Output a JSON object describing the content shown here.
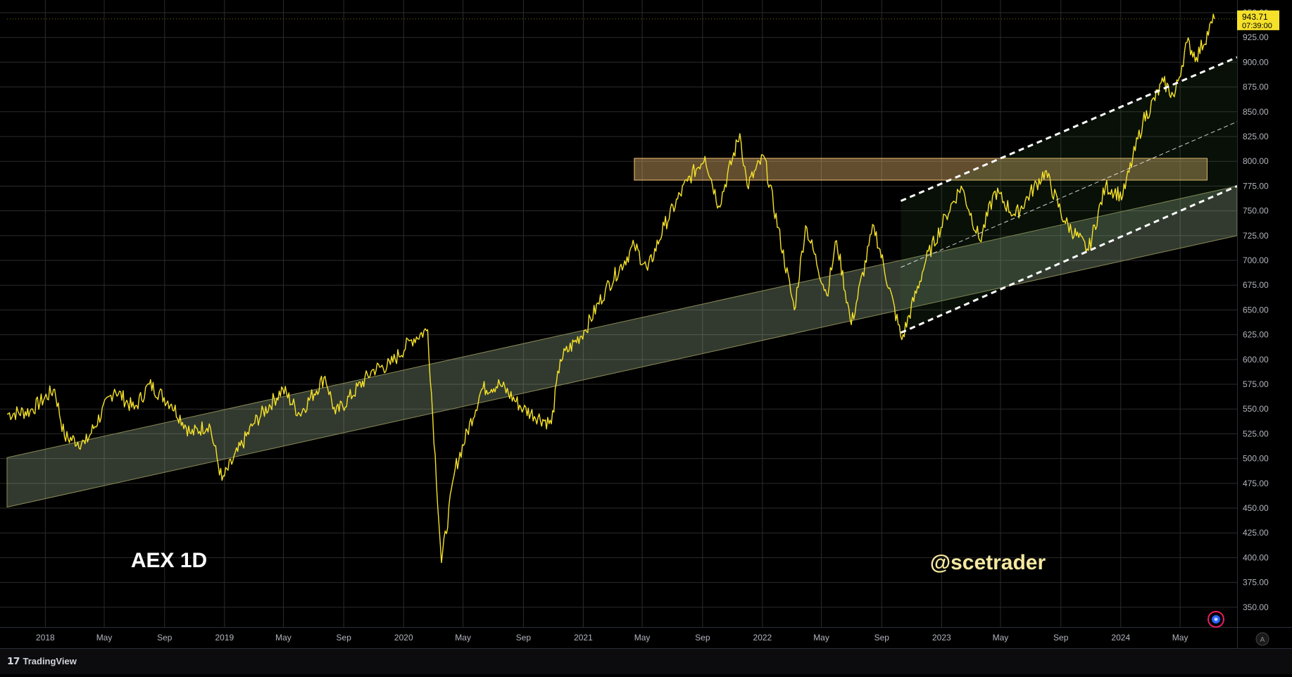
{
  "chart_data": {
    "type": "line",
    "title": "AEX 1D",
    "watermark": "@scetrader",
    "y_axis": {
      "min": 330,
      "max": 950,
      "ticks": [
        "350.00",
        "375.00",
        "400.00",
        "425.00",
        "450.00",
        "475.00",
        "500.00",
        "525.00",
        "550.00",
        "575.00",
        "600.00",
        "625.00",
        "650.00",
        "675.00",
        "700.00",
        "725.00",
        "750.00",
        "775.00",
        "800.00",
        "825.00",
        "850.00",
        "875.00",
        "900.00",
        "925.00",
        "950.00"
      ]
    },
    "x_axis": {
      "range": [
        "2017-10-15",
        "2024-08-25"
      ],
      "ticks": [
        {
          "label": "2018",
          "date": "2018-01-01"
        },
        {
          "label": "May",
          "date": "2018-05-01"
        },
        {
          "label": "Sep",
          "date": "2018-09-01"
        },
        {
          "label": "2019",
          "date": "2019-01-01"
        },
        {
          "label": "May",
          "date": "2019-05-01"
        },
        {
          "label": "Sep",
          "date": "2019-09-01"
        },
        {
          "label": "2020",
          "date": "2020-01-01"
        },
        {
          "label": "May",
          "date": "2020-05-01"
        },
        {
          "label": "Sep",
          "date": "2020-09-01"
        },
        {
          "label": "2021",
          "date": "2021-01-01"
        },
        {
          "label": "May",
          "date": "2021-05-01"
        },
        {
          "label": "Sep",
          "date": "2021-09-01"
        },
        {
          "label": "2022",
          "date": "2022-01-01"
        },
        {
          "label": "May",
          "date": "2022-05-01"
        },
        {
          "label": "Sep",
          "date": "2022-09-01"
        },
        {
          "label": "2023",
          "date": "2023-01-01"
        },
        {
          "label": "May",
          "date": "2023-05-01"
        },
        {
          "label": "Sep",
          "date": "2023-09-01"
        },
        {
          "label": "2024",
          "date": "2024-01-01"
        },
        {
          "label": "May",
          "date": "2024-05-01"
        }
      ]
    },
    "grid": true,
    "series": [
      {
        "color": "#f5e12a",
        "points": [
          {
            "x": "2017-10-15",
            "y": 545
          },
          {
            "x": "2017-12-01",
            "y": 548
          },
          {
            "x": "2018-01-20",
            "y": 570
          },
          {
            "x": "2018-02-09",
            "y": 522
          },
          {
            "x": "2018-03-23",
            "y": 515
          },
          {
            "x": "2018-05-22",
            "y": 570
          },
          {
            "x": "2018-07-01",
            "y": 550
          },
          {
            "x": "2018-08-01",
            "y": 575
          },
          {
            "x": "2018-09-15",
            "y": 555
          },
          {
            "x": "2018-10-25",
            "y": 525
          },
          {
            "x": "2018-12-01",
            "y": 535
          },
          {
            "x": "2018-12-27",
            "y": 478
          },
          {
            "x": "2019-03-01",
            "y": 535
          },
          {
            "x": "2019-04-30",
            "y": 570
          },
          {
            "x": "2019-06-03",
            "y": 545
          },
          {
            "x": "2019-07-25",
            "y": 583
          },
          {
            "x": "2019-08-15",
            "y": 545
          },
          {
            "x": "2019-11-01",
            "y": 590
          },
          {
            "x": "2019-12-05",
            "y": 595
          },
          {
            "x": "2020-01-17",
            "y": 620
          },
          {
            "x": "2020-02-19",
            "y": 630
          },
          {
            "x": "2020-03-18",
            "y": 395
          },
          {
            "x": "2020-04-15",
            "y": 490
          },
          {
            "x": "2020-06-08",
            "y": 570
          },
          {
            "x": "2020-07-15",
            "y": 575
          },
          {
            "x": "2020-09-01",
            "y": 550
          },
          {
            "x": "2020-10-28",
            "y": 535
          },
          {
            "x": "2020-11-15",
            "y": 600
          },
          {
            "x": "2021-01-05",
            "y": 630
          },
          {
            "x": "2021-02-15",
            "y": 670
          },
          {
            "x": "2021-04-15",
            "y": 715
          },
          {
            "x": "2021-05-12",
            "y": 690
          },
          {
            "x": "2021-06-15",
            "y": 735
          },
          {
            "x": "2021-08-01",
            "y": 780
          },
          {
            "x": "2021-09-06",
            "y": 805
          },
          {
            "x": "2021-10-04",
            "y": 755
          },
          {
            "x": "2021-11-16",
            "y": 828
          },
          {
            "x": "2021-12-01",
            "y": 775
          },
          {
            "x": "2022-01-04",
            "y": 805
          },
          {
            "x": "2022-03-07",
            "y": 650
          },
          {
            "x": "2022-03-30",
            "y": 735
          },
          {
            "x": "2022-05-12",
            "y": 665
          },
          {
            "x": "2022-06-01",
            "y": 720
          },
          {
            "x": "2022-07-01",
            "y": 635
          },
          {
            "x": "2022-08-16",
            "y": 735
          },
          {
            "x": "2022-10-12",
            "y": 620
          },
          {
            "x": "2022-11-30",
            "y": 700
          },
          {
            "x": "2023-01-10",
            "y": 745
          },
          {
            "x": "2023-02-10",
            "y": 775
          },
          {
            "x": "2023-03-20",
            "y": 720
          },
          {
            "x": "2023-04-20",
            "y": 770
          },
          {
            "x": "2023-05-31",
            "y": 745
          },
          {
            "x": "2023-07-31",
            "y": 790
          },
          {
            "x": "2023-09-08",
            "y": 740
          },
          {
            "x": "2023-10-27",
            "y": 710
          },
          {
            "x": "2023-12-01",
            "y": 775
          },
          {
            "x": "2024-01-05",
            "y": 765
          },
          {
            "x": "2024-02-15",
            "y": 840
          },
          {
            "x": "2024-03-28",
            "y": 880
          },
          {
            "x": "2024-04-19",
            "y": 865
          },
          {
            "x": "2024-05-15",
            "y": 920
          },
          {
            "x": "2024-06-03",
            "y": 905
          },
          {
            "x": "2024-07-10",
            "y": 943.71
          }
        ]
      }
    ],
    "last_price": {
      "value": "943.71",
      "countdown": "07:39:00",
      "y": 943.71
    },
    "drawings": {
      "resistance_zone": {
        "x1": "2021-04-15",
        "x2": "2024-06-25",
        "y_low": 781,
        "y_high": 803,
        "color": "#f5c276"
      },
      "long_channel": {
        "x1": "2017-10-15",
        "x2": "2024-08-25",
        "upper_start": 501,
        "upper_end": 775,
        "lower_start": 451,
        "lower_end": 725
      },
      "rising_channel": {
        "upper": {
          "x1": "2022-10-10",
          "y1": 760,
          "x2": "2024-08-25",
          "y2": 905
        },
        "middle": {
          "x1": "2022-10-10",
          "y1": 693,
          "x2": "2024-08-25",
          "y2": 840
        },
        "lower": {
          "x1": "2022-10-10",
          "y1": 627,
          "x2": "2024-08-25",
          "y2": 775
        }
      }
    }
  },
  "footer": {
    "brand": "TradingView",
    "brand_icon": "tradingview-logo-icon"
  },
  "corner_labels": {
    "auto_scale": "A"
  }
}
